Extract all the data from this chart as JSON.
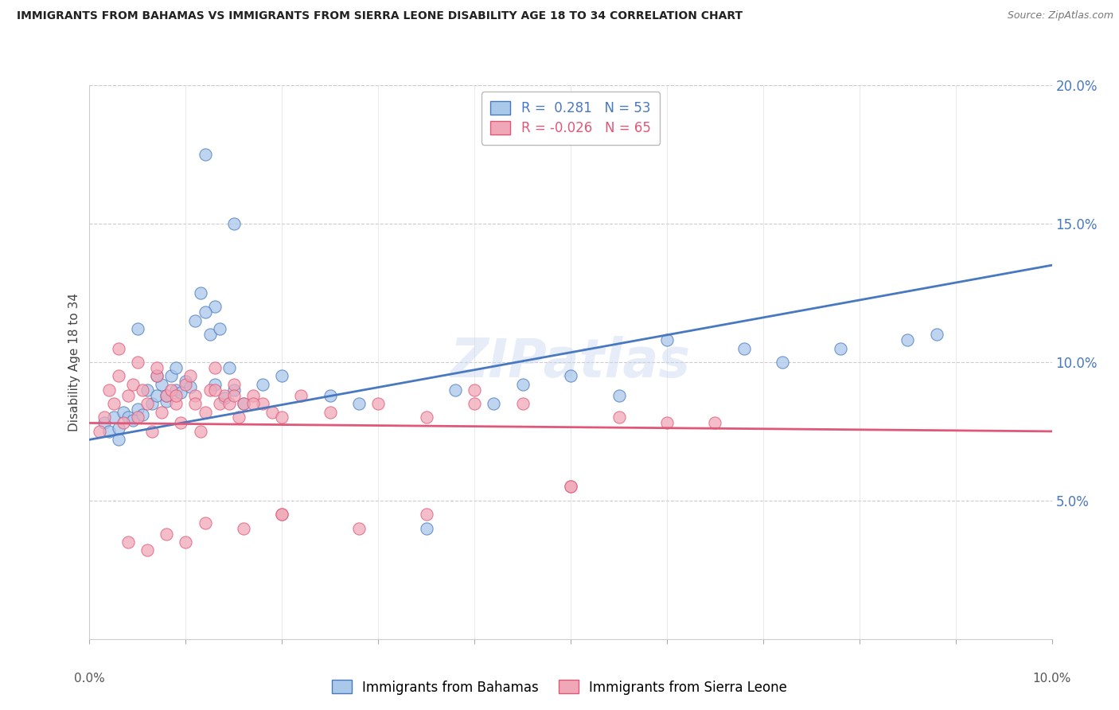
{
  "title": "IMMIGRANTS FROM BAHAMAS VS IMMIGRANTS FROM SIERRA LEONE DISABILITY AGE 18 TO 34 CORRELATION CHART",
  "source": "Source: ZipAtlas.com",
  "ylabel": "Disability Age 18 to 34",
  "legend_label1": "Immigrants from Bahamas",
  "legend_label2": "Immigrants from Sierra Leone",
  "r1": 0.281,
  "n1": 53,
  "r2": -0.026,
  "n2": 65,
  "xlim": [
    0.0,
    10.0
  ],
  "ylim": [
    0.0,
    20.0
  ],
  "ytick_vals": [
    5.0,
    10.0,
    15.0,
    20.0
  ],
  "ytick_labels": [
    "5.0%",
    "10.0%",
    "15.0%",
    "20.0%"
  ],
  "color_bahamas": "#aac8ea",
  "color_sierra": "#f0a8b8",
  "line_color_bahamas": "#4878c0",
  "line_color_sierra": "#e05878",
  "background_color": "#ffffff",
  "watermark": "ZIPatlas",
  "b_line_x0": 0.0,
  "b_line_y0": 7.2,
  "b_line_x1": 10.0,
  "b_line_y1": 13.5,
  "s_line_x0": 0.0,
  "s_line_y0": 7.8,
  "s_line_x1": 10.0,
  "s_line_y1": 7.5,
  "bahamas_x": [
    0.15,
    0.2,
    0.25,
    0.3,
    0.35,
    0.4,
    0.45,
    0.5,
    0.55,
    0.6,
    0.65,
    0.7,
    0.75,
    0.8,
    0.85,
    0.9,
    0.95,
    1.0,
    1.05,
    1.1,
    1.15,
    1.2,
    1.25,
    1.3,
    1.35,
    1.4,
    1.45,
    1.5,
    1.6,
    1.8,
    2.0,
    2.5,
    3.5,
    4.2,
    5.5,
    6.8,
    8.5,
    3.8,
    5.0,
    7.2,
    0.5,
    0.9,
    1.2,
    1.5,
    0.3,
    0.8,
    1.3,
    2.8,
    4.5,
    6.0,
    7.8,
    8.8,
    0.7
  ],
  "bahamas_y": [
    7.8,
    7.5,
    8.0,
    7.6,
    8.2,
    8.0,
    7.9,
    8.3,
    8.1,
    9.0,
    8.5,
    8.8,
    9.2,
    8.6,
    9.5,
    9.0,
    8.9,
    9.3,
    9.1,
    11.5,
    12.5,
    17.5,
    11.0,
    12.0,
    11.2,
    8.7,
    9.8,
    15.0,
    8.5,
    9.2,
    9.5,
    8.8,
    4.0,
    8.5,
    8.8,
    10.5,
    10.8,
    9.0,
    9.5,
    10.0,
    11.2,
    9.8,
    11.8,
    9.0,
    7.2,
    8.8,
    9.2,
    8.5,
    9.2,
    10.8,
    10.5,
    11.0,
    9.5
  ],
  "sierra_x": [
    0.1,
    0.15,
    0.2,
    0.25,
    0.3,
    0.35,
    0.4,
    0.45,
    0.5,
    0.55,
    0.6,
    0.65,
    0.7,
    0.75,
    0.8,
    0.85,
    0.9,
    0.95,
    1.0,
    1.05,
    1.1,
    1.15,
    1.2,
    1.25,
    1.3,
    1.35,
    1.4,
    1.45,
    1.5,
    1.55,
    1.6,
    1.7,
    1.8,
    1.9,
    2.0,
    2.2,
    2.5,
    3.0,
    3.5,
    4.0,
    4.5,
    5.0,
    5.5,
    6.5,
    0.3,
    0.5,
    0.7,
    0.9,
    1.1,
    1.3,
    1.5,
    1.7,
    2.0,
    2.8,
    3.5,
    4.0,
    5.0,
    6.0,
    0.4,
    0.8,
    1.2,
    1.6,
    2.0,
    0.6,
    1.0
  ],
  "sierra_y": [
    7.5,
    8.0,
    9.0,
    8.5,
    9.5,
    7.8,
    8.8,
    9.2,
    8.0,
    9.0,
    8.5,
    7.5,
    9.5,
    8.2,
    8.8,
    9.0,
    8.5,
    7.8,
    9.2,
    9.5,
    8.8,
    7.5,
    8.2,
    9.0,
    9.8,
    8.5,
    8.8,
    8.5,
    9.2,
    8.0,
    8.5,
    8.8,
    8.5,
    8.2,
    8.0,
    8.8,
    8.2,
    8.5,
    4.5,
    9.0,
    8.5,
    5.5,
    8.0,
    7.8,
    10.5,
    10.0,
    9.8,
    8.8,
    8.5,
    9.0,
    8.8,
    8.5,
    4.5,
    4.0,
    8.0,
    8.5,
    5.5,
    7.8,
    3.5,
    3.8,
    4.2,
    4.0,
    4.5,
    3.2,
    3.5
  ]
}
